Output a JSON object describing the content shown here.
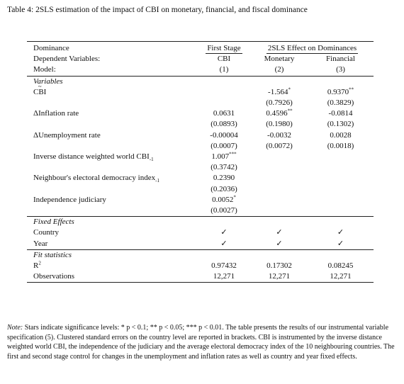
{
  "caption": "Table 4: 2SLS estimation of the impact of CBI on monetary, financial, and fiscal dominance",
  "table": {
    "header": {
      "dominance": "Dominance",
      "first_stage": "First Stage",
      "effect": "2SLS Effect on Dominances"
    },
    "dep_vars": {
      "label": "Dependent Variables:",
      "cols": [
        "CBI",
        "Monetary",
        "Financial"
      ]
    },
    "model": {
      "label": "Model:",
      "cols": [
        "(1)",
        "(2)",
        "(3)"
      ]
    },
    "sections": [
      {
        "title": "Variables",
        "rows": [
          {
            "label": "CBI",
            "tilde": true,
            "cells": [
              null,
              {
                "est": "-1.564",
                "stars": "*",
                "se": "(0.7926)"
              },
              {
                "est": "0.9370",
                "stars": "**",
                "se": "(0.3829)"
              }
            ]
          },
          {
            "label": "ΔInflation rate",
            "cells": [
              {
                "est": "0.0631",
                "se": "(0.0893)"
              },
              {
                "est": "0.4596",
                "stars": "**",
                "se": "(0.1980)"
              },
              {
                "est": "-0.0814",
                "se": "(0.1302)"
              }
            ]
          },
          {
            "label": "ΔUnemployment rate",
            "cells": [
              {
                "est": "-0.00004",
                "se": "(0.0007)"
              },
              {
                "est": "-0.0032",
                "se": "(0.0072)"
              },
              {
                "est": "0.0028",
                "se": "(0.0018)"
              }
            ]
          },
          {
            "label": "Inverse distance weighted world CBI",
            "sub": "-1",
            "cells": [
              {
                "est": "1.007",
                "stars": "***",
                "se": "(0.3742)"
              },
              null,
              null
            ]
          },
          {
            "label": "Neighbour's electoral democracy index",
            "sub": "-1",
            "cells": [
              {
                "est": "0.2390",
                "se": "(0.2036)"
              },
              null,
              null
            ]
          },
          {
            "label": "Independence judiciary",
            "cells": [
              {
                "est": "0.0052",
                "stars": "*",
                "se": "(0.0027)"
              },
              null,
              null
            ]
          }
        ]
      },
      {
        "title": "Fixed Effects",
        "rows": [
          {
            "label": "Country",
            "cells": [
              "✓",
              "✓",
              "✓"
            ]
          },
          {
            "label": "Year",
            "cells": [
              "✓",
              "✓",
              "✓"
            ]
          }
        ]
      },
      {
        "title": "Fit statistics",
        "rows": [
          {
            "label": "R",
            "sup": "2",
            "cells": [
              "0.97432",
              "0.17302",
              "0.08245"
            ]
          },
          {
            "label": "Observations",
            "cells": [
              "12,271",
              "12,271",
              "12,271"
            ]
          }
        ]
      }
    ]
  },
  "note": {
    "label": "Note:",
    "text": "Stars indicate significance levels: * p < 0.1; ** p < 0.05; *** p < 0.01. The table presents the results of our instrumental variable specification (5). Clustered standard errors on the country level are reported in brackets. CBI is instrumented by the inverse distance weighted world CBI, the independence of the judiciary and the average electoral democracy index of the 10 neighbouring countries. The first and second stage control for changes in the unemployment and inflation rates as well as country and year fixed effects."
  }
}
